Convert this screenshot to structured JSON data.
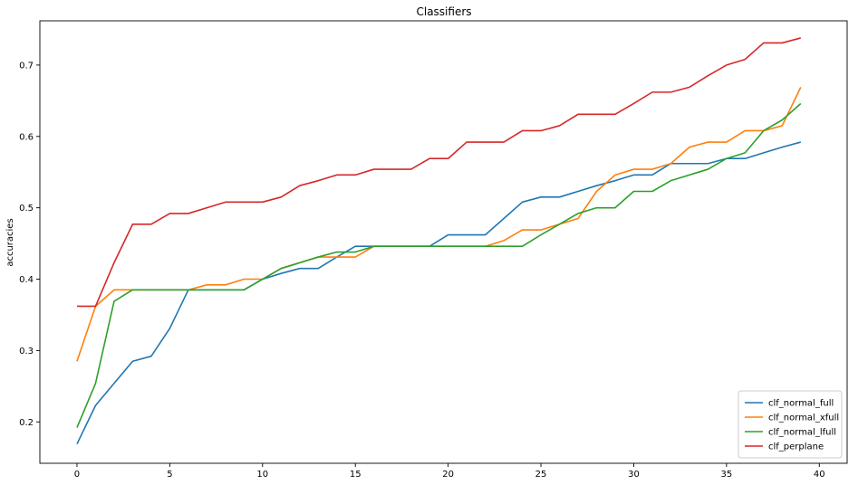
{
  "chart_data": {
    "type": "line",
    "title": "Classifiers",
    "xlabel": "",
    "ylabel": "accuracies",
    "xlim": [
      -2,
      41.5
    ],
    "ylim": [
      0.142,
      0.762
    ],
    "xticks": [
      0,
      5,
      10,
      15,
      20,
      25,
      30,
      35,
      40
    ],
    "yticks": [
      0.2,
      0.3,
      0.4,
      0.5,
      0.6,
      0.7
    ],
    "ytick_labels": [
      "0.2",
      "0.3",
      "0.4",
      "0.5",
      "0.6",
      "0.7"
    ],
    "grid": false,
    "legend_position": "lower-right",
    "x": [
      0,
      1,
      2,
      3,
      4,
      5,
      6,
      7,
      8,
      9,
      10,
      11,
      12,
      13,
      14,
      15,
      16,
      17,
      18,
      19,
      20,
      21,
      22,
      23,
      24,
      25,
      26,
      27,
      28,
      29,
      30,
      31,
      32,
      33,
      34,
      35,
      36,
      37,
      38,
      39
    ],
    "series": [
      {
        "name": "clf_normal_full",
        "color": "#1f77b4",
        "values": [
          0.169,
          0.223,
          0.254,
          0.285,
          0.292,
          0.331,
          0.385,
          0.385,
          0.385,
          0.385,
          0.4,
          0.408,
          0.415,
          0.415,
          0.431,
          0.446,
          0.446,
          0.446,
          0.446,
          0.446,
          0.462,
          0.462,
          0.462,
          0.485,
          0.508,
          0.515,
          0.515,
          0.523,
          0.531,
          0.538,
          0.546,
          0.546,
          0.562,
          0.562,
          0.562,
          0.569,
          0.569,
          0.577,
          0.585,
          0.592
        ]
      },
      {
        "name": "clf_normal_xfull",
        "color": "#ff7f0e",
        "values": [
          0.285,
          0.362,
          0.385,
          0.385,
          0.385,
          0.385,
          0.385,
          0.392,
          0.392,
          0.4,
          0.4,
          0.415,
          0.423,
          0.431,
          0.431,
          0.431,
          0.446,
          0.446,
          0.446,
          0.446,
          0.446,
          0.446,
          0.446,
          0.454,
          0.469,
          0.469,
          0.477,
          0.485,
          0.523,
          0.546,
          0.554,
          0.554,
          0.562,
          0.585,
          0.592,
          0.592,
          0.608,
          0.608,
          0.615,
          0.669
        ]
      },
      {
        "name": "clf_normal_lfull",
        "color": "#2ca02c",
        "values": [
          0.192,
          0.254,
          0.369,
          0.385,
          0.385,
          0.385,
          0.385,
          0.385,
          0.385,
          0.385,
          0.4,
          0.415,
          0.423,
          0.431,
          0.438,
          0.438,
          0.446,
          0.446,
          0.446,
          0.446,
          0.446,
          0.446,
          0.446,
          0.446,
          0.446,
          0.462,
          0.477,
          0.492,
          0.5,
          0.5,
          0.523,
          0.523,
          0.538,
          0.546,
          0.554,
          0.569,
          0.577,
          0.608,
          0.623,
          0.646
        ]
      },
      {
        "name": "clf_perplane",
        "color": "#d62728",
        "values": [
          0.362,
          0.362,
          0.423,
          0.477,
          0.477,
          0.492,
          0.492,
          0.5,
          0.508,
          0.508,
          0.508,
          0.515,
          0.531,
          0.538,
          0.546,
          0.546,
          0.554,
          0.554,
          0.554,
          0.569,
          0.569,
          0.592,
          0.592,
          0.592,
          0.608,
          0.608,
          0.615,
          0.631,
          0.631,
          0.631,
          0.646,
          0.662,
          0.662,
          0.669,
          0.685,
          0.7,
          0.708,
          0.731,
          0.731,
          0.738
        ]
      }
    ]
  }
}
